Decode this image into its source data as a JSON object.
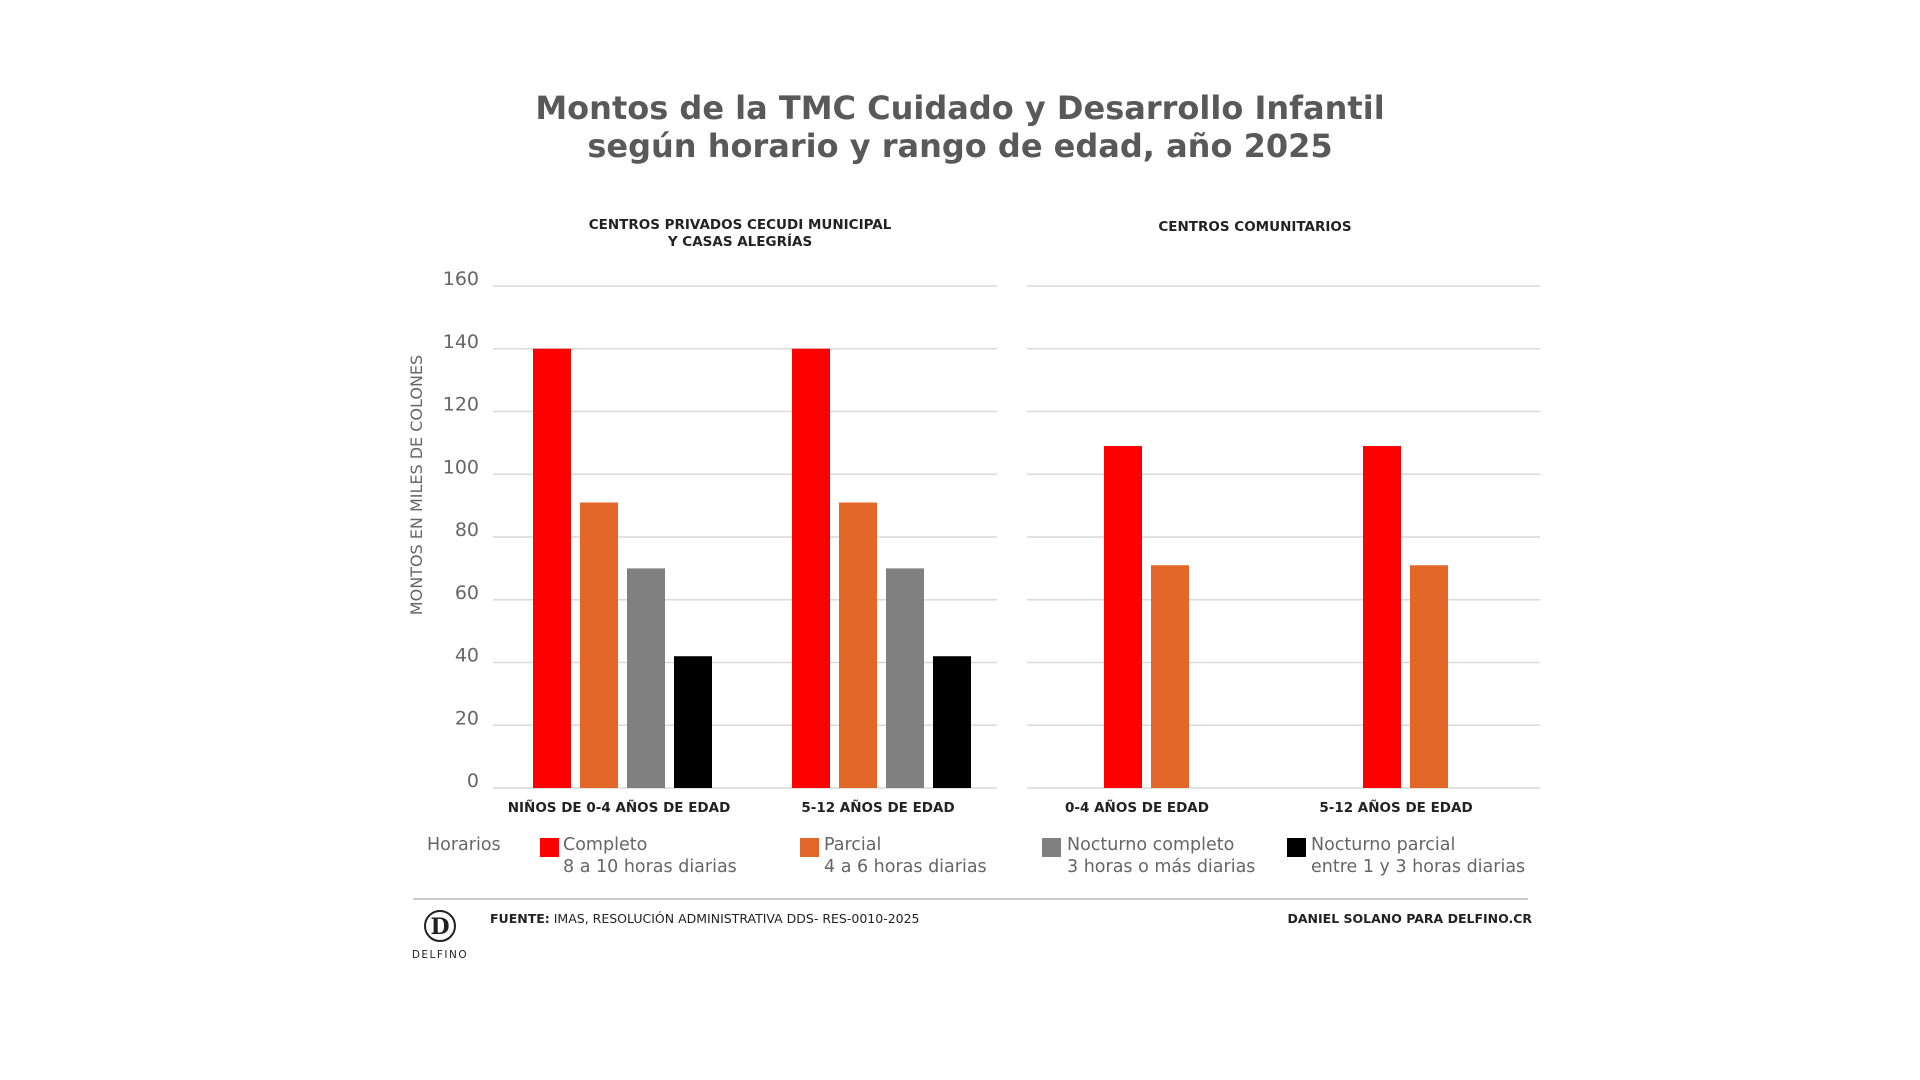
{
  "title_line1": "Montos de la TMC Cuidado y Desarrollo Infantil",
  "title_line2": "según horario y rango de edad, año 2025",
  "chart_data": {
    "type": "bar",
    "ylabel": "MONTOS EN MILES DE COLONES",
    "ylim": [
      0,
      160
    ],
    "yticks": [
      0,
      20,
      40,
      60,
      80,
      100,
      120,
      140,
      160
    ],
    "grid": true,
    "legend_title": "Horarios",
    "legend": [
      {
        "name": "Completo",
        "desc": "8 a 10 horas diarias",
        "color": "#ff0000"
      },
      {
        "name": "Parcial",
        "desc": "4 a 6 horas diarias",
        "color": "#e4672a"
      },
      {
        "name": "Nocturno completo",
        "desc": "3 horas o más diarias",
        "color": "#808080"
      },
      {
        "name": "Nocturno parcial",
        "desc": "entre 1 y 3 horas diarias",
        "color": "#000000"
      }
    ],
    "panels": [
      {
        "title_line1": "CENTROS PRIVADOS CECUDI MUNICIPAL",
        "title_line2": "Y CASAS ALEGRÍAS",
        "categories": [
          "NIÑOS DE 0-4 AÑOS DE EDAD",
          "5-12 AÑOS DE EDAD"
        ],
        "series": [
          {
            "name": "Completo",
            "values": [
              140,
              140
            ]
          },
          {
            "name": "Parcial",
            "values": [
              91,
              91
            ]
          },
          {
            "name": "Nocturno completo",
            "values": [
              70,
              70
            ]
          },
          {
            "name": "Nocturno parcial",
            "values": [
              42,
              42
            ]
          }
        ]
      },
      {
        "title_line1": "CENTROS COMUNITARIOS",
        "title_line2": "",
        "categories": [
          "0-4  AÑOS DE EDAD",
          "5-12  AÑOS DE EDAD"
        ],
        "series": [
          {
            "name": "Completo",
            "values": [
              109,
              109
            ]
          },
          {
            "name": "Parcial",
            "values": [
              71,
              71
            ]
          }
        ]
      }
    ]
  },
  "footer": {
    "source_label": "FUENTE:",
    "source_text": " IMAS, RESOLUCIÓN ADMINISTRATIVA DDS- RES-0010-2025",
    "credit": "DANIEL SOLANO PARA DELFINO.CR",
    "logo_letter": "D",
    "logo_name": "DELFINO"
  }
}
